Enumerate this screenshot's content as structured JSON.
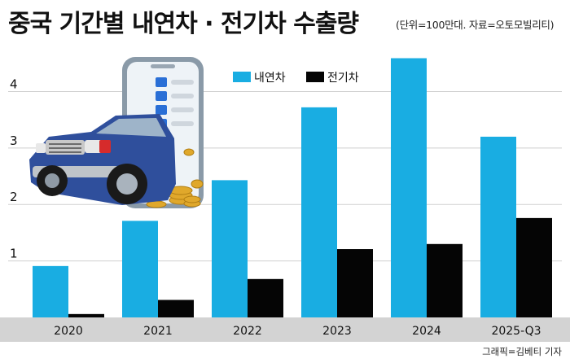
{
  "header": {
    "title": "중국 기간별 내연차 · 전기차 수출량",
    "subtitle": "(단위=100만대. 자료=오토모빌리티)"
  },
  "footer": {
    "credit": "그래픽=김베티 기자"
  },
  "illustration": {
    "icon": "car-phone-checklist-coins-illustration"
  },
  "colors": {
    "ice": "#19ade2",
    "ev": "#050505",
    "axis_band": "#d3d3d3",
    "grid": "#cfcfcf"
  },
  "chart_data": {
    "type": "bar",
    "title": "중국 기간별 내연차 · 전기차 수출량",
    "categories": [
      "2020",
      "2021",
      "2022",
      "2023",
      "2024",
      "2025-Q3"
    ],
    "series": [
      {
        "name": "내연차",
        "values": [
          0.91,
          1.71,
          2.43,
          3.72,
          4.59,
          3.2
        ]
      },
      {
        "name": "전기차",
        "values": [
          0.06,
          0.31,
          0.68,
          1.21,
          1.3,
          1.76
        ]
      }
    ],
    "yticks": [
      1,
      2,
      3,
      4
    ],
    "ylim": [
      0,
      4.9
    ],
    "grid": true,
    "legend": "top-center"
  }
}
